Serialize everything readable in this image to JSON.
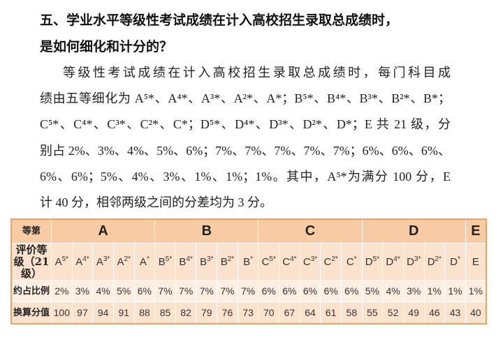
{
  "heading": [
    "五、学业水平等级性考试成绩在计入高校招生录取总成绩时，",
    "是如何细化和计分的？"
  ],
  "paragraph": [
    "等级性考试成绩在计入高校招生录取总成绩时，每门科目成",
    "绩由五等细化为 A⁵*、A⁴*、A³*、A²*、A*；B⁵*、B⁴*、B³*、B²*、B*；",
    "C⁵*、C⁴*、C³*、C²*、C*；D⁵*、D⁴*、D³*、D²*、D*；E 共 21 级，分",
    "别占 2%、3%、4%、5%、6%；7%、7%、7%、7%、7%；6%、6%、6%、",
    "6%、6%；5%、4%、3%、1%、1%；1%。其中，A⁵*为满分 100 分，E",
    "计 40 分，相邻两级之间的分差均为 3 分。"
  ],
  "table": {
    "row_labels": [
      "等第",
      "评价等级（21级）",
      "约占比例",
      "换算分值"
    ],
    "groups": [
      {
        "name": "A",
        "grades": [
          {
            "base": "A",
            "sup": "5*"
          },
          {
            "base": "A",
            "sup": "4*"
          },
          {
            "base": "A",
            "sup": "3*"
          },
          {
            "base": "A",
            "sup": "2*"
          },
          {
            "base": "A",
            "sup": "*"
          }
        ],
        "shares": [
          "2%",
          "3%",
          "4%",
          "5%",
          "6%"
        ],
        "scores": [
          100,
          97,
          94,
          91,
          88
        ]
      },
      {
        "name": "B",
        "grades": [
          {
            "base": "B",
            "sup": "5*"
          },
          {
            "base": "B",
            "sup": "4*"
          },
          {
            "base": "B",
            "sup": "3*"
          },
          {
            "base": "B",
            "sup": "2*"
          },
          {
            "base": "B",
            "sup": "*"
          }
        ],
        "shares": [
          "7%",
          "7%",
          "7%",
          "7%",
          "7%"
        ],
        "scores": [
          85,
          82,
          79,
          76,
          73
        ]
      },
      {
        "name": "C",
        "grades": [
          {
            "base": "C",
            "sup": "5*"
          },
          {
            "base": "C",
            "sup": "4*"
          },
          {
            "base": "C",
            "sup": "3*"
          },
          {
            "base": "C",
            "sup": "2*"
          },
          {
            "base": "C",
            "sup": "*"
          }
        ],
        "shares": [
          "6%",
          "6%",
          "6%",
          "6%",
          "6%"
        ],
        "scores": [
          70,
          67,
          64,
          61,
          58
        ]
      },
      {
        "name": "D",
        "grades": [
          {
            "base": "D",
            "sup": "5*"
          },
          {
            "base": "D",
            "sup": "4*"
          },
          {
            "base": "D",
            "sup": "3*"
          },
          {
            "base": "D",
            "sup": "2*"
          },
          {
            "base": "D",
            "sup": "*"
          }
        ],
        "shares": [
          "5%",
          "4%",
          "3%",
          "1%",
          "1%"
        ],
        "scores": [
          55,
          52,
          49,
          46,
          43
        ]
      },
      {
        "name": "E",
        "grades": [
          {
            "base": "E"
          }
        ],
        "shares": [
          "1%"
        ],
        "scores": [
          40
        ]
      }
    ]
  }
}
